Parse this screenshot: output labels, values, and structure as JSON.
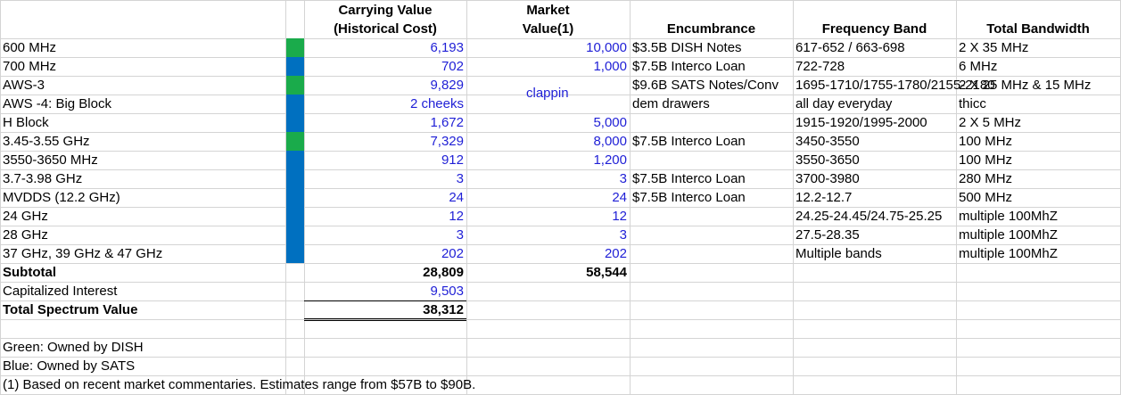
{
  "headers": {
    "carrying_line1": "Carrying Value",
    "carrying_line2": "(Historical Cost)",
    "market_line1": "Market",
    "market_line2": "Value(1)",
    "encumbrance": "Encumbrance",
    "frequency": "Frequency Band",
    "bandwidth": "Total Bandwidth"
  },
  "colors": {
    "green": "#1aab4b",
    "blue": "#0070c0"
  },
  "rows": [
    {
      "name": "600 MHz",
      "owner": "green",
      "carrying": "6,193",
      "market": "10,000",
      "encumbrance": "$3.5B DISH Notes",
      "frequency": "617-652 / 663-698",
      "bandwidth": "2 X 35 MHz"
    },
    {
      "name": "700 MHz",
      "owner": "blue",
      "carrying": "702",
      "market": "1,000",
      "encumbrance": "$7.5B Interco Loan",
      "frequency": "722-728",
      "bandwidth": "6 MHz"
    },
    {
      "name": "AWS-3",
      "owner": "green",
      "carrying": "9,829",
      "market": "",
      "encumbrance": "$9.6B SATS Notes/Conv",
      "frequency": "1695-1710/1755-1780/2155-2180",
      "bandwidth": "2 X 25 MHz & 15 MHz"
    },
    {
      "name": "AWS -4: Big Block",
      "owner": "blue",
      "carrying": "2 cheeks",
      "market": "",
      "encumbrance": "dem drawers",
      "frequency": "all day everyday",
      "bandwidth": "thicc"
    },
    {
      "name": "H Block",
      "owner": "blue",
      "carrying": "1,672",
      "market": "5,000",
      "encumbrance": "",
      "frequency": "1915-1920/1995-2000",
      "bandwidth": "2 X 5 MHz"
    },
    {
      "name": "3.45-3.55 GHz",
      "owner": "green",
      "carrying": "7,329",
      "market": "8,000",
      "encumbrance": "$7.5B Interco Loan",
      "frequency": "3450-3550",
      "bandwidth": "100 MHz"
    },
    {
      "name": "3550-3650 MHz",
      "owner": "blue",
      "carrying": "912",
      "market": "1,200",
      "encumbrance": "",
      "frequency": "3550-3650",
      "bandwidth": "100 MHz"
    },
    {
      "name": "3.7-3.98 GHz",
      "owner": "blue",
      "carrying": "3",
      "market": "3",
      "encumbrance": "$7.5B Interco Loan",
      "frequency": "3700-3980",
      "bandwidth": "280 MHz"
    },
    {
      "name": "MVDDS (12.2 GHz)",
      "owner": "blue",
      "carrying": "24",
      "market": "24",
      "encumbrance": "$7.5B Interco Loan",
      "frequency": "12.2-12.7",
      "bandwidth": "500 MHz"
    },
    {
      "name": "24 GHz",
      "owner": "blue",
      "carrying": "12",
      "market": "12",
      "encumbrance": "",
      "frequency": "24.25-24.45/24.75-25.25",
      "bandwidth": "multiple 100MhZ"
    },
    {
      "name": "28 GHz",
      "owner": "blue",
      "carrying": "3",
      "market": "3",
      "encumbrance": "",
      "frequency": "27.5-28.35",
      "bandwidth": "multiple 100MhZ"
    },
    {
      "name": "37 GHz, 39 GHz & 47 GHz",
      "owner": "blue",
      "carrying": "202",
      "market": "202",
      "encumbrance": "",
      "frequency": "Multiple bands",
      "bandwidth": "multiple 100MhZ"
    }
  ],
  "floating_text": "clappin",
  "subtotal": {
    "label": "Subtotal",
    "carrying": "28,809",
    "market": "58,544"
  },
  "capitalized": {
    "label": "Capitalized Interest",
    "carrying": "9,503"
  },
  "total": {
    "label": "Total Spectrum Value",
    "carrying": "38,312"
  },
  "notes": {
    "green": "Green:  Owned by DISH",
    "blue": "Blue: Owned by SATS",
    "footnote": "(1) Based on recent market commentaries.  Estimates range from $57B to $90B."
  }
}
